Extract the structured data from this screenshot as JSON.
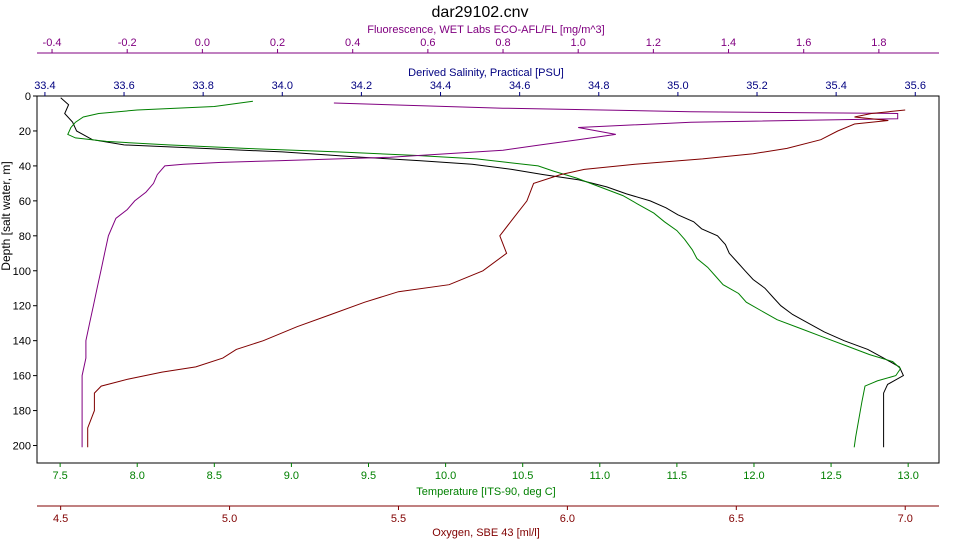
{
  "chart_data": {
    "type": "line",
    "title": "dar29102.cnv",
    "y_axis": {
      "label": "Depth [salt water, m]",
      "range": [
        210,
        0
      ],
      "ticks": [
        0,
        20,
        40,
        60,
        80,
        100,
        120,
        140,
        160,
        180,
        200
      ],
      "inverted": true
    },
    "x_axes": [
      {
        "id": "fluorescence",
        "label": "Fluorescence, WET Labs ECO-AFL/FL [mg/m^3]",
        "color": "#800080",
        "position": "top-1",
        "range": [
          -0.44,
          1.96
        ],
        "ticks": [
          -0.4,
          -0.2,
          0.0,
          0.2,
          0.4,
          0.6,
          0.8,
          1.0,
          1.2,
          1.4,
          1.6,
          1.8
        ],
        "tick_labels": [
          "-0.4",
          "-0.2",
          "0.0",
          "0.2",
          "0.4",
          "0.6",
          "0.8",
          "1.0",
          "1.2",
          "1.4",
          "1.6",
          "1.8"
        ]
      },
      {
        "id": "salinity",
        "label": "Derived Salinity, Practical [PSU]",
        "color": "#000080",
        "position": "top-2",
        "range": [
          33.38,
          35.66
        ],
        "ticks": [
          33.4,
          33.6,
          33.8,
          34.0,
          34.2,
          34.4,
          34.6,
          34.8,
          35.0,
          35.2,
          35.4,
          35.6
        ],
        "tick_labels": [
          "33.4",
          "33.6",
          "33.8",
          "34.0",
          "34.2",
          "34.4",
          "34.6",
          "34.8",
          "35.0",
          "35.2",
          "35.4",
          "35.6"
        ]
      },
      {
        "id": "temperature",
        "label": "Temperature [ITS-90, deg C]",
        "color": "#008000",
        "position": "bottom-1",
        "range": [
          7.35,
          13.2
        ],
        "ticks": [
          7.5,
          8.0,
          8.5,
          9.0,
          9.5,
          10.0,
          10.5,
          11.0,
          11.5,
          12.0,
          12.5,
          13.0
        ],
        "tick_labels": [
          "7.5",
          "8.0",
          "8.5",
          "9.0",
          "9.5",
          "10.0",
          "10.5",
          "11.0",
          "11.5",
          "12.0",
          "12.5",
          "13.0"
        ]
      },
      {
        "id": "oxygen",
        "label": "Oxygen, SBE 43 [ml/l]",
        "color": "#800000",
        "position": "bottom-2",
        "range": [
          4.43,
          7.1
        ],
        "ticks": [
          4.5,
          5.0,
          5.5,
          6.0,
          6.5,
          7.0
        ],
        "tick_labels": [
          "4.5",
          "5.0",
          "5.5",
          "6.0",
          "6.5",
          "7.0"
        ]
      }
    ],
    "series": [
      {
        "axis": "salinity",
        "color": "#000000",
        "points": [
          [
            33.44,
            1
          ],
          [
            33.46,
            5
          ],
          [
            33.45,
            10
          ],
          [
            33.47,
            15
          ],
          [
            33.48,
            20
          ],
          [
            33.52,
            25
          ],
          [
            33.6,
            28
          ],
          [
            33.8,
            30
          ],
          [
            34.0,
            32
          ],
          [
            34.2,
            35
          ],
          [
            34.35,
            37
          ],
          [
            34.48,
            39
          ],
          [
            34.58,
            42
          ],
          [
            34.66,
            45
          ],
          [
            34.75,
            48
          ],
          [
            34.82,
            52
          ],
          [
            34.87,
            56
          ],
          [
            34.93,
            60
          ],
          [
            34.97,
            64
          ],
          [
            35.0,
            68
          ],
          [
            35.04,
            72
          ],
          [
            35.06,
            76
          ],
          [
            35.1,
            80
          ],
          [
            35.12,
            85
          ],
          [
            35.13,
            90
          ],
          [
            35.15,
            95
          ],
          [
            35.17,
            100
          ],
          [
            35.19,
            105
          ],
          [
            35.22,
            110
          ],
          [
            35.24,
            115
          ],
          [
            35.26,
            120
          ],
          [
            35.29,
            125
          ],
          [
            35.33,
            130
          ],
          [
            35.37,
            135
          ],
          [
            35.42,
            140
          ],
          [
            35.48,
            145
          ],
          [
            35.52,
            150
          ],
          [
            35.56,
            155
          ],
          [
            35.57,
            160
          ],
          [
            35.53,
            165
          ],
          [
            35.52,
            170
          ],
          [
            35.52,
            180
          ],
          [
            35.52,
            190
          ],
          [
            35.52,
            201
          ]
        ]
      },
      {
        "axis": "temperature",
        "color": "#008000",
        "points": [
          [
            8.75,
            3
          ],
          [
            8.5,
            6
          ],
          [
            8.0,
            8
          ],
          [
            7.75,
            10
          ],
          [
            7.65,
            12
          ],
          [
            7.6,
            15
          ],
          [
            7.57,
            18
          ],
          [
            7.55,
            22
          ],
          [
            7.6,
            24
          ],
          [
            7.8,
            26
          ],
          [
            8.2,
            28
          ],
          [
            8.7,
            30
          ],
          [
            9.3,
            32
          ],
          [
            9.8,
            34
          ],
          [
            10.2,
            36
          ],
          [
            10.4,
            38
          ],
          [
            10.6,
            40
          ],
          [
            10.7,
            43
          ],
          [
            10.85,
            47
          ],
          [
            11.0,
            52
          ],
          [
            11.15,
            57
          ],
          [
            11.25,
            62
          ],
          [
            11.35,
            67
          ],
          [
            11.42,
            72
          ],
          [
            11.5,
            77
          ],
          [
            11.55,
            82
          ],
          [
            11.6,
            88
          ],
          [
            11.63,
            93
          ],
          [
            11.7,
            98
          ],
          [
            11.75,
            103
          ],
          [
            11.8,
            108
          ],
          [
            11.9,
            113
          ],
          [
            11.95,
            118
          ],
          [
            12.05,
            123
          ],
          [
            12.15,
            128
          ],
          [
            12.3,
            133
          ],
          [
            12.45,
            138
          ],
          [
            12.6,
            143
          ],
          [
            12.75,
            148
          ],
          [
            12.9,
            152
          ],
          [
            12.95,
            156
          ],
          [
            12.92,
            160
          ],
          [
            12.8,
            163
          ],
          [
            12.72,
            166
          ],
          [
            12.7,
            175
          ],
          [
            12.68,
            185
          ],
          [
            12.66,
            195
          ],
          [
            12.65,
            201
          ]
        ]
      },
      {
        "axis": "fluorescence",
        "color": "#800080",
        "points": [
          [
            0.35,
            4
          ],
          [
            0.8,
            7
          ],
          [
            1.3,
            9
          ],
          [
            1.85,
            10
          ],
          [
            1.85,
            13
          ],
          [
            1.3,
            15
          ],
          [
            1.0,
            18
          ],
          [
            1.1,
            22
          ],
          [
            1.0,
            25
          ],
          [
            0.9,
            28
          ],
          [
            0.8,
            31
          ],
          [
            0.5,
            35
          ],
          [
            0.2,
            37
          ],
          [
            0.05,
            38
          ],
          [
            -0.05,
            39
          ],
          [
            -0.1,
            40
          ],
          [
            -0.12,
            45
          ],
          [
            -0.13,
            50
          ],
          [
            -0.15,
            55
          ],
          [
            -0.18,
            60
          ],
          [
            -0.2,
            65
          ],
          [
            -0.23,
            70
          ],
          [
            -0.25,
            80
          ],
          [
            -0.26,
            90
          ],
          [
            -0.27,
            100
          ],
          [
            -0.28,
            110
          ],
          [
            -0.29,
            120
          ],
          [
            -0.3,
            130
          ],
          [
            -0.31,
            140
          ],
          [
            -0.31,
            150
          ],
          [
            -0.32,
            160
          ],
          [
            -0.32,
            170
          ],
          [
            -0.32,
            180
          ],
          [
            -0.32,
            190
          ],
          [
            -0.32,
            201
          ]
        ]
      },
      {
        "axis": "oxygen",
        "color": "#800000",
        "points": [
          [
            7.0,
            8
          ],
          [
            6.9,
            10
          ],
          [
            6.85,
            12
          ],
          [
            6.95,
            14
          ],
          [
            6.85,
            16
          ],
          [
            6.8,
            20
          ],
          [
            6.75,
            25
          ],
          [
            6.65,
            30
          ],
          [
            6.55,
            33
          ],
          [
            6.4,
            36
          ],
          [
            6.2,
            39
          ],
          [
            6.05,
            42
          ],
          [
            5.98,
            45
          ],
          [
            5.9,
            50
          ],
          [
            5.88,
            60
          ],
          [
            5.84,
            70
          ],
          [
            5.8,
            80
          ],
          [
            5.82,
            90
          ],
          [
            5.75,
            100
          ],
          [
            5.65,
            108
          ],
          [
            5.5,
            112
          ],
          [
            5.4,
            118
          ],
          [
            5.3,
            125
          ],
          [
            5.2,
            132
          ],
          [
            5.1,
            140
          ],
          [
            5.02,
            145
          ],
          [
            4.98,
            150
          ],
          [
            4.9,
            155
          ],
          [
            4.8,
            158
          ],
          [
            4.7,
            162
          ],
          [
            4.62,
            166
          ],
          [
            4.6,
            170
          ],
          [
            4.6,
            180
          ],
          [
            4.58,
            190
          ],
          [
            4.58,
            201
          ]
        ]
      }
    ]
  }
}
